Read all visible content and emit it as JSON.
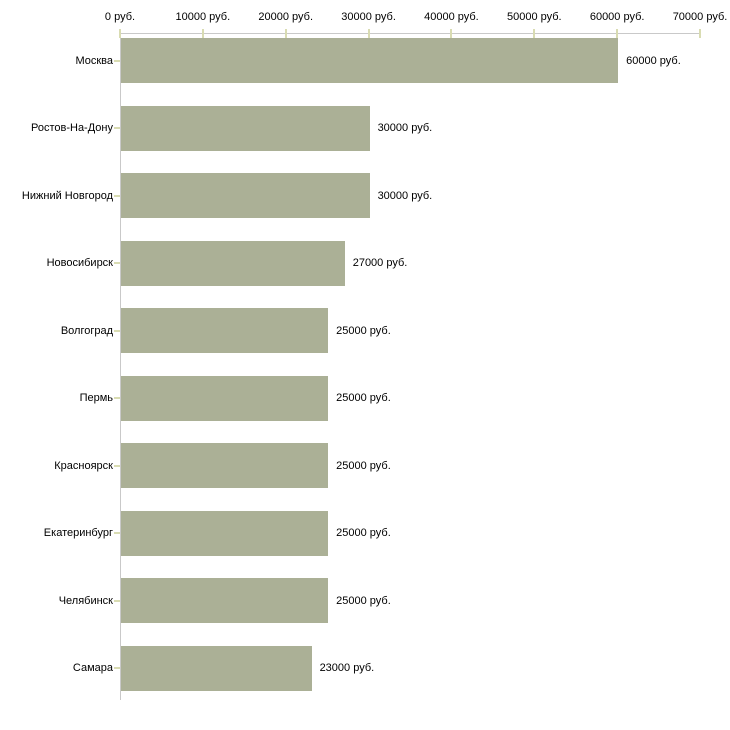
{
  "chart_data": {
    "type": "bar",
    "orientation": "horizontal",
    "title": "",
    "xlabel": "",
    "ylabel": "",
    "unit": "руб.",
    "categories": [
      "Москва",
      "Ростов-На-Дону",
      "Нижний Новгород",
      "Новосибирск",
      "Волгоград",
      "Пермь",
      "Красноярск",
      "Екатеринбург",
      "Челябинск",
      "Самара"
    ],
    "values": [
      60000,
      30000,
      30000,
      27000,
      25000,
      25000,
      25000,
      25000,
      25000,
      23000
    ],
    "value_labels": [
      "60000 руб.",
      "30000 руб.",
      "30000 руб.",
      "27000 руб.",
      "25000 руб.",
      "25000 руб.",
      "25000 руб.",
      "25000 руб.",
      "25000 руб.",
      "23000 руб."
    ],
    "x_axis": {
      "position": "top",
      "min": 0,
      "max": 70000,
      "ticks": [
        0,
        10000,
        20000,
        30000,
        40000,
        50000,
        60000,
        70000
      ],
      "tick_labels": [
        "0 руб.",
        "10000 руб.",
        "20000 руб.",
        "30000 руб.",
        "40000 руб.",
        "50000 руб.",
        "60000 руб.",
        "70000 руб."
      ]
    },
    "grid": false,
    "legend": false,
    "colors": {
      "bar": "#abb096",
      "axis_line": "#c9c9c9",
      "tick_mark": "#d9dcb2",
      "label_text": "#000000",
      "background": "#ffffff"
    }
  }
}
